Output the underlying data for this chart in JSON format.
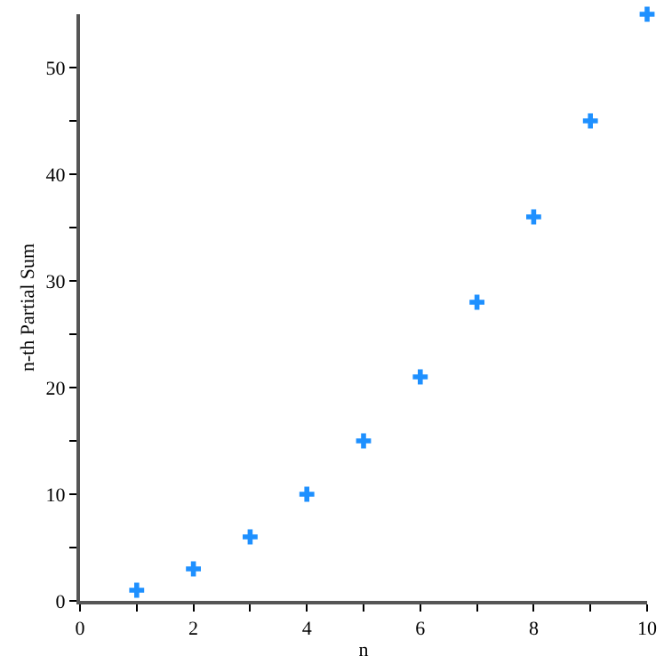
{
  "chart_data": {
    "type": "scatter",
    "xlabel": "n",
    "ylabel": "n-th Partial Sum",
    "x": [
      1,
      2,
      3,
      4,
      5,
      6,
      7,
      8,
      9,
      10
    ],
    "series": [
      {
        "color": "#1e90ff",
        "values": [
          1,
          3,
          6,
          10,
          15,
          21,
          28,
          36,
          45,
          55
        ]
      }
    ],
    "xlim": [
      0,
      10
    ],
    "ylim": [
      0,
      55
    ],
    "xticks": [
      0,
      {
        "value": 1,
        "label": null
      },
      2,
      {
        "value": 3,
        "label": null
      },
      4,
      {
        "value": 5,
        "label": null
      },
      6,
      {
        "value": 7,
        "label": null
      },
      8,
      {
        "value": 9,
        "label": null
      },
      10
    ],
    "yticks": [
      0,
      {
        "value": 5,
        "label": null
      },
      10,
      {
        "value": 15,
        "label": null
      },
      20,
      {
        "value": 25,
        "label": null
      },
      30,
      {
        "value": 35,
        "label": null
      },
      40,
      {
        "value": 45,
        "label": null
      },
      50
    ],
    "marker": "cross"
  }
}
